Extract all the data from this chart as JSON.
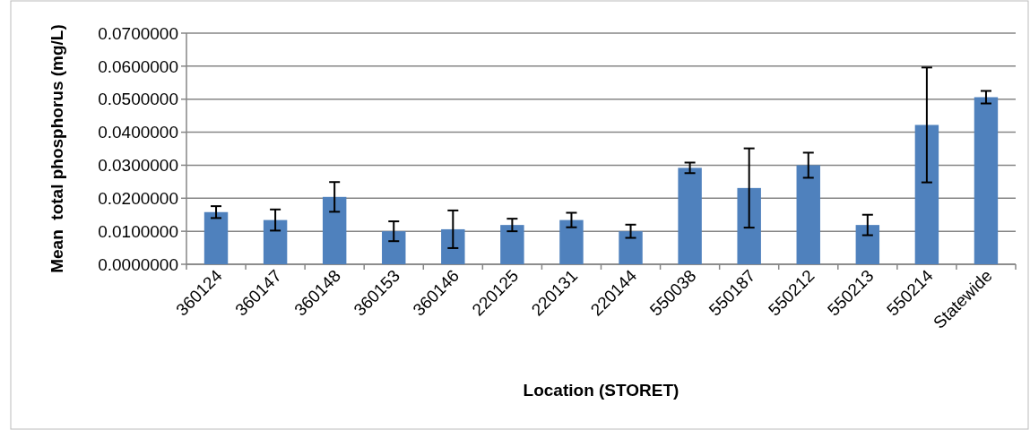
{
  "chart_data": {
    "type": "bar",
    "xlabel": "Location (STORET)",
    "ylabel": "Mean  total phosphorus (mg/L)",
    "categories": [
      "360124",
      "360147",
      "360148",
      "360153",
      "360146",
      "220125",
      "220131",
      "220144",
      "550038",
      "550187",
      "550212",
      "550213",
      "550214",
      "Statewide"
    ],
    "values": [
      0.0158,
      0.0134,
      0.0204,
      0.01,
      0.0106,
      0.0119,
      0.0134,
      0.01,
      0.0292,
      0.0231,
      0.03,
      0.0119,
      0.0422,
      0.0506
    ],
    "errors": [
      0.0018,
      0.0032,
      0.0045,
      0.003,
      0.0057,
      0.0019,
      0.0022,
      0.002,
      0.0016,
      0.012,
      0.0038,
      0.0031,
      0.0174,
      0.0019
    ],
    "color": "#4f81bd",
    "ylim": [
      0,
      0.07
    ],
    "yticks": [
      {
        "value": 0,
        "label": "0.0000000"
      },
      {
        "value": 0.01,
        "label": "0.0100000"
      },
      {
        "value": 0.02,
        "label": "0.0200000"
      },
      {
        "value": 0.03,
        "label": "0.0300000"
      },
      {
        "value": 0.04,
        "label": "0.0400000"
      },
      {
        "value": 0.05,
        "label": "0.0500000"
      },
      {
        "value": 0.06,
        "label": "0.0600000"
      },
      {
        "value": 0.07,
        "label": "0.0700000"
      }
    ],
    "grid": "y"
  }
}
